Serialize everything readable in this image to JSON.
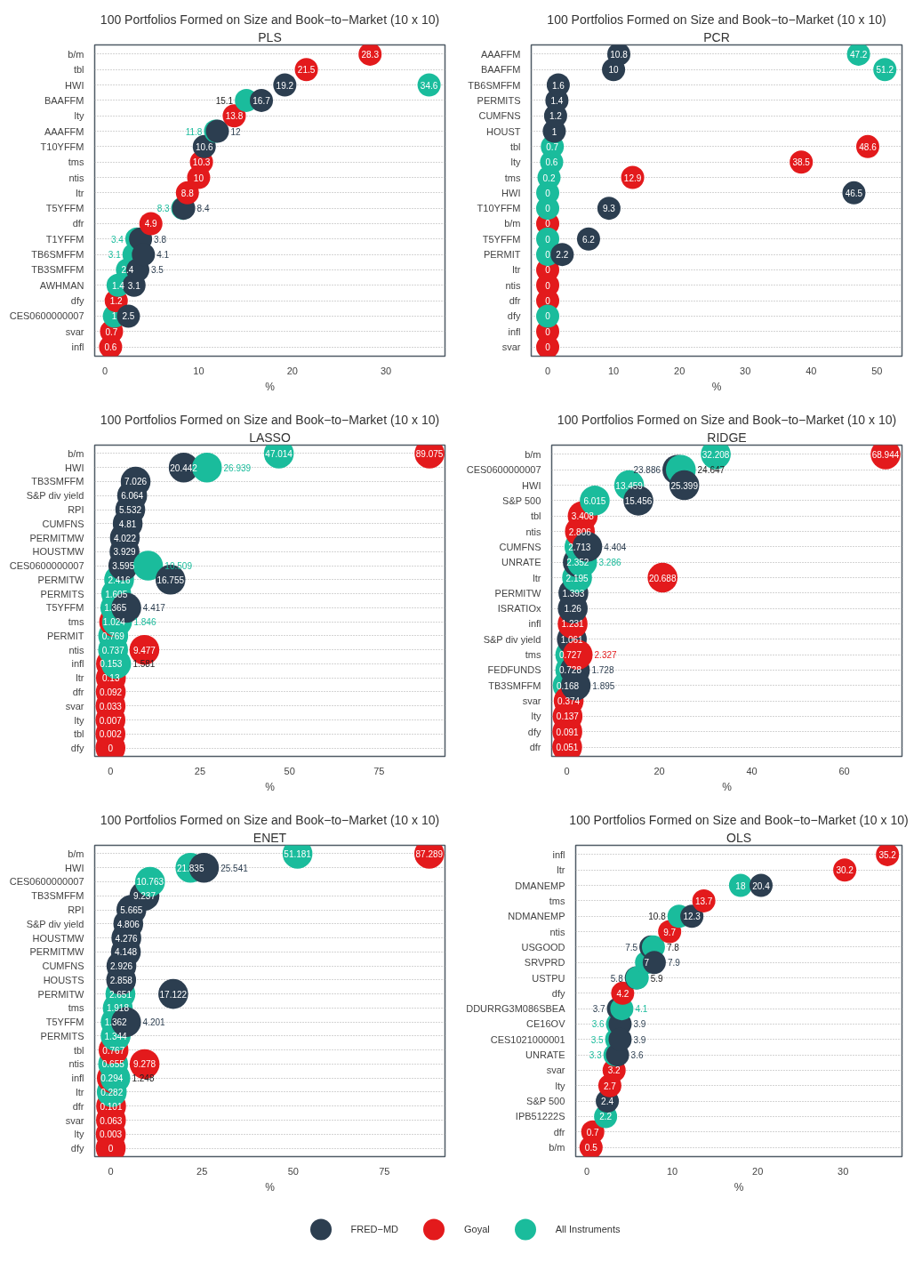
{
  "chart_data": [
    {
      "type": "scatter",
      "orientation": "horizontal",
      "title": "100 Portfolios Formed on Size and Book−to−Market (10 x 10)",
      "subtitle": "PLS",
      "xlabel": "%",
      "categories": [
        "b/m",
        "tbl",
        "HWI",
        "BAAFFM",
        "lty",
        "AAAFFM",
        "T10YFFM",
        "tms",
        "ntis",
        "ltr",
        "T5YFFM",
        "dfr",
        "T1YFFM",
        "TB6SMFFM",
        "TB3SMFFM",
        "AWHMAN",
        "dfy",
        "CES0600000007",
        "svar",
        "infl"
      ],
      "series": [
        {
          "name": "FRED−MD",
          "color": "#2c3e50",
          "values": [
            null,
            null,
            19.2,
            16.7,
            null,
            12,
            10.6,
            null,
            null,
            null,
            8.4,
            null,
            3.8,
            4.1,
            3.5,
            3.1,
            null,
            2.5,
            null,
            null
          ]
        },
        {
          "name": "Goyal",
          "color": "#e31a1c",
          "values": [
            28.3,
            21.5,
            null,
            null,
            13.8,
            null,
            null,
            10.3,
            10,
            8.8,
            null,
            4.9,
            null,
            null,
            null,
            null,
            1.2,
            null,
            0.7,
            0.6
          ]
        },
        {
          "name": "All Instruments",
          "color": "#1abc9c",
          "values": [
            null,
            null,
            34.6,
            15.1,
            null,
            11.8,
            null,
            null,
            null,
            null,
            8.3,
            null,
            3.4,
            3.1,
            2.4,
            1.4,
            null,
            1,
            null,
            null
          ]
        }
      ],
      "xlim": [
        -1.1,
        36.3
      ],
      "xticks": [
        0,
        10,
        20,
        30
      ],
      "grid": "y",
      "marker": "circle",
      "data_labels": true,
      "legend": "bottom"
    },
    {
      "type": "scatter",
      "orientation": "horizontal",
      "title": "100 Portfolios Formed on Size and Book−to−Market (10 x 10)",
      "subtitle": "PCR",
      "xlabel": "%",
      "categories": [
        "AAAFFM",
        "BAAFFM",
        "TB6SMFFM",
        "PERMITS",
        "CUMFNS",
        "HOUST",
        "tbl",
        "lty",
        "tms",
        "HWI",
        "T10YFFM",
        "b/m",
        "T5YFFM",
        "PERMIT",
        "ltr",
        "ntis",
        "dfr",
        "dfy",
        "infl",
        "svar"
      ],
      "series": [
        {
          "color": "#2c3e50",
          "values": [
            10.8,
            10,
            1.6,
            1.4,
            1.2,
            1,
            null,
            null,
            null,
            46.5,
            9.3,
            null,
            6.2,
            2.2,
            null,
            null,
            null,
            null,
            null,
            null
          ]
        },
        {
          "color": "#e31a1c",
          "values": [
            null,
            null,
            null,
            null,
            null,
            null,
            48.6,
            38.5,
            12.9,
            null,
            null,
            0,
            null,
            null,
            0,
            0,
            0,
            null,
            0,
            0
          ]
        },
        {
          "color": "#1abc9c",
          "values": [
            47.2,
            51.2,
            null,
            null,
            null,
            null,
            0.7,
            0.6,
            0.2,
            0,
            0,
            null,
            0,
            0,
            null,
            null,
            null,
            0,
            null,
            null
          ]
        }
      ],
      "xlim": [
        -2.5,
        53.8
      ],
      "xticks": [
        0,
        10,
        20,
        30,
        40,
        50
      ],
      "grid": "y",
      "marker": "circle",
      "data_labels": true
    },
    {
      "type": "scatter",
      "orientation": "horizontal",
      "title": "100 Portfolios Formed on Size and Book−to−Market (10 x 10)",
      "subtitle": "LASSO",
      "xlabel": "%",
      "categories": [
        "b/m",
        "HWI",
        "TB3SMFFM",
        "S&P div yield",
        "RPI",
        "CUMFNS",
        "PERMITMW",
        "HOUSTMW",
        "CES0600000007",
        "PERMITW",
        "PERMITS",
        "T5YFFM",
        "tms",
        "PERMIT",
        "ntis",
        "infl",
        "ltr",
        "dfr",
        "svar",
        "lty",
        "tbl",
        "dfy"
      ],
      "series": [
        {
          "color": "#2c3e50",
          "values": [
            null,
            20.442,
            7.026,
            6.064,
            5.532,
            4.81,
            4.022,
            3.929,
            3.595,
            16.755,
            null,
            4.417,
            null,
            null,
            null,
            null,
            null,
            null,
            null,
            null,
            null,
            null
          ]
        },
        {
          "color": "#e31a1c",
          "values": [
            89.075,
            null,
            null,
            null,
            null,
            null,
            null,
            null,
            null,
            null,
            null,
            null,
            1.024,
            null,
            9.477,
            0.153,
            0.13,
            0.092,
            0.033,
            0.007,
            0.002,
            0
          ]
        },
        {
          "color": "#1abc9c",
          "values": [
            47.014,
            26.939,
            null,
            null,
            null,
            null,
            null,
            null,
            10.509,
            2.416,
            1.605,
            1.365,
            1.846,
            0.769,
            0.737,
            1.581,
            null,
            null,
            null,
            null,
            null,
            null
          ]
        }
      ],
      "xlim": [
        -4.4,
        93.4
      ],
      "xticks": [
        0,
        25,
        50,
        75
      ],
      "grid": "y",
      "marker": "circle",
      "data_labels": true
    },
    {
      "type": "scatter",
      "orientation": "horizontal",
      "title": "100 Portfolios Formed on Size and Book−to−Market (10 x 10)",
      "subtitle": "RIDGE",
      "xlabel": "%",
      "categories": [
        "b/m",
        "CES0600000007",
        "HWI",
        "S&P 500",
        "tbl",
        "ntis",
        "CUMFNS",
        "UNRATE",
        "ltr",
        "PERMITW",
        "ISRATIOx",
        "infl",
        "S&P div yield",
        "tms",
        "FEDFUNDS",
        "TB3SMFFM",
        "svar",
        "lty",
        "dfy",
        "dfr"
      ],
      "series": [
        {
          "color": "#2c3e50",
          "values": [
            null,
            23.886,
            25.399,
            15.456,
            null,
            null,
            4.404,
            2.352,
            null,
            1.393,
            1.26,
            null,
            1.061,
            null,
            1.728,
            1.895,
            null,
            null,
            null,
            null
          ]
        },
        {
          "color": "#e31a1c",
          "values": [
            68.944,
            null,
            null,
            null,
            3.408,
            2.806,
            null,
            null,
            20.688,
            null,
            null,
            1.231,
            null,
            2.327,
            null,
            null,
            0.374,
            0.137,
            0.091,
            0.051
          ]
        },
        {
          "color": "#1abc9c",
          "values": [
            32.208,
            24.647,
            13.459,
            6.015,
            null,
            null,
            2.713,
            3.286,
            2.195,
            null,
            null,
            null,
            null,
            0.727,
            0.728,
            0.168,
            null,
            null,
            null,
            null
          ]
        }
      ],
      "xlim": [
        -3.3,
        72.5
      ],
      "xticks": [
        0,
        20,
        40,
        60
      ],
      "grid": "y",
      "marker": "circle",
      "data_labels": true
    },
    {
      "type": "scatter",
      "orientation": "horizontal",
      "title": "100 Portfolios Formed on Size and Book−to−Market (10 x 10)",
      "subtitle": "ENET",
      "xlabel": "%",
      "categories": [
        "b/m",
        "HWI",
        "CES0600000007",
        "TB3SMFFM",
        "RPI",
        "S&P div yield",
        "HOUSTMW",
        "PERMITMW",
        "CUMFNS",
        "HOUSTS",
        "PERMITW",
        "tms",
        "T5YFFM",
        "PERMITS",
        "tbl",
        "ntis",
        "infl",
        "ltr",
        "dfr",
        "svar",
        "lty",
        "dfy"
      ],
      "series": [
        {
          "color": "#2c3e50",
          "values": [
            null,
            25.541,
            null,
            9.237,
            5.665,
            4.806,
            4.276,
            4.148,
            2.926,
            2.858,
            17.122,
            null,
            4.201,
            null,
            null,
            null,
            null,
            null,
            null,
            null,
            null,
            null
          ]
        },
        {
          "color": "#e31a1c",
          "values": [
            87.289,
            null,
            null,
            null,
            null,
            null,
            null,
            null,
            null,
            null,
            null,
            null,
            null,
            null,
            0.767,
            9.278,
            0.294,
            null,
            0.101,
            0.063,
            0.003,
            0
          ]
        },
        {
          "color": "#1abc9c",
          "values": [
            51.181,
            21.835,
            10.763,
            null,
            null,
            null,
            null,
            null,
            null,
            null,
            2.651,
            1.918,
            1.362,
            1.344,
            null,
            0.655,
            1.248,
            0.282,
            null,
            null,
            null,
            null
          ]
        }
      ],
      "xlim": [
        -4.4,
        91.6
      ],
      "xticks": [
        0,
        25,
        50,
        75
      ],
      "grid": "y",
      "marker": "circle",
      "data_labels": true
    },
    {
      "type": "scatter",
      "orientation": "horizontal",
      "title": "100 Portfolios Formed on Size and Book−to−Market (10 x 10)",
      "subtitle": "OLS",
      "xlabel": "%",
      "categories": [
        "infl",
        "ltr",
        "DMANEMP",
        "tms",
        "NDMANEMP",
        "ntis",
        "USGOOD",
        "SRVPRD",
        "USTPU",
        "dfy",
        "DDURRG3M086SBEA",
        "CE16OV",
        "CES1021000001",
        "UNRATE",
        "svar",
        "lty",
        "S&P 500",
        "IPB51222S",
        "dfr",
        "b/m"
      ],
      "series": [
        {
          "color": "#2c3e50",
          "values": [
            null,
            null,
            20.4,
            null,
            12.3,
            null,
            7.5,
            7.9,
            5.8,
            null,
            3.7,
            3.9,
            3.9,
            3.6,
            null,
            null,
            2.4,
            null,
            null,
            null
          ]
        },
        {
          "color": "#e31a1c",
          "values": [
            35.2,
            30.2,
            null,
            13.7,
            null,
            9.7,
            null,
            null,
            null,
            4.2,
            null,
            null,
            null,
            null,
            3.2,
            2.7,
            null,
            null,
            0.7,
            0.5
          ]
        },
        {
          "color": "#1abc9c",
          "values": [
            null,
            null,
            18,
            null,
            10.8,
            null,
            7.8,
            7,
            5.9,
            null,
            4.1,
            3.6,
            3.5,
            3.3,
            null,
            null,
            null,
            2.2,
            null,
            null
          ]
        }
      ],
      "xlim": [
        -1.3,
        36.9
      ],
      "xticks": [
        0,
        10,
        20,
        30
      ],
      "grid": "y",
      "marker": "circle",
      "data_labels": true
    }
  ]
}
